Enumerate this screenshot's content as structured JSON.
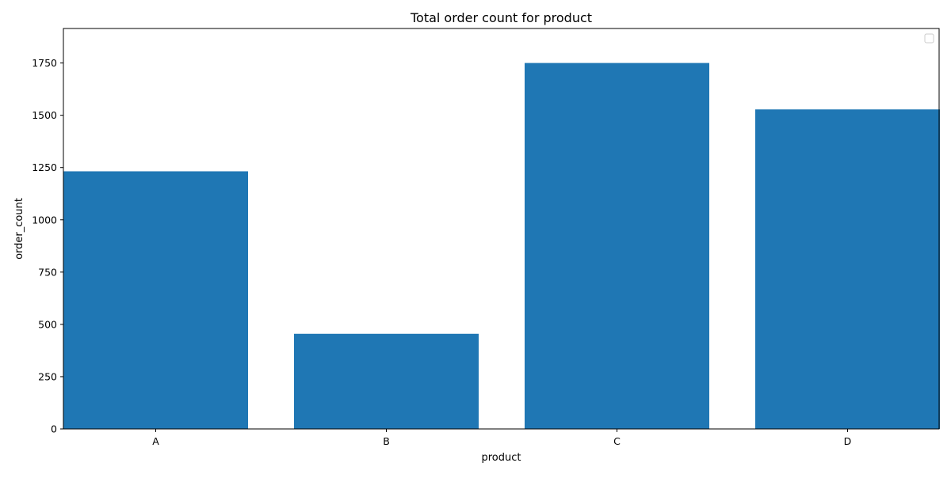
{
  "chart_data": {
    "type": "bar",
    "title": "Total order count for product",
    "xlabel": "product",
    "ylabel": "order_count",
    "categories": [
      "A",
      "B",
      "C",
      "D"
    ],
    "values": [
      1232,
      455,
      1750,
      1528
    ],
    "ylim": [
      0,
      1915
    ],
    "yticks": [
      0,
      250,
      500,
      750,
      1000,
      1250,
      1500,
      1750
    ],
    "ytick_labels": [
      "0",
      "250",
      "500",
      "750",
      "1000",
      "1250",
      "1500",
      "1750"
    ],
    "bar_color": "#1f77b4",
    "grid": false,
    "legend": {
      "placement": "top-right",
      "entries": []
    }
  }
}
